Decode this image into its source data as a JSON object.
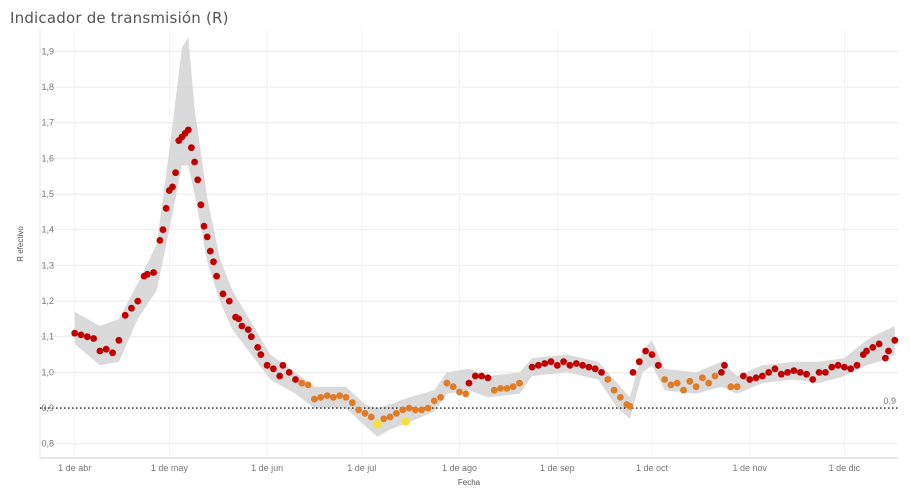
{
  "chart_data": {
    "type": "scatter",
    "title": "Indicador de transmisión (R)",
    "xlabel": "Fecha",
    "ylabel": "R efectivo",
    "x_range": [
      "2020-03-21",
      "2020-12-18"
    ],
    "ylim": [
      0.76,
      1.96
    ],
    "yticks": [
      0.8,
      0.9,
      1.0,
      1.1,
      1.2,
      1.3,
      1.4,
      1.5,
      1.6,
      1.7,
      1.8,
      1.9
    ],
    "ytick_labels": [
      "0,8",
      "0,9",
      "1,0",
      "1,1",
      "1,2",
      "1,3",
      "1,4",
      "1,5",
      "1,6",
      "1,7",
      "1,8",
      "1,9"
    ],
    "xticks": [
      {
        "date": "2020-04-01",
        "label": "1 de abr"
      },
      {
        "date": "2020-05-01",
        "label": "1 de may"
      },
      {
        "date": "2020-06-01",
        "label": "1 de jun"
      },
      {
        "date": "2020-07-01",
        "label": "1 de jul"
      },
      {
        "date": "2020-08-01",
        "label": "1 de ago"
      },
      {
        "date": "2020-09-01",
        "label": "1 de sep"
      },
      {
        "date": "2020-10-01",
        "label": "1 de oct"
      },
      {
        "date": "2020-11-01",
        "label": "1 de nov"
      },
      {
        "date": "2020-12-01",
        "label": "1 de dic"
      }
    ],
    "reference_line": {
      "y": 0.9,
      "label": "0,9",
      "style": "dotted"
    },
    "grid": "horizontal",
    "colors": {
      "high": "#c00000",
      "mid": "#e07b28",
      "low": "#f5e23d",
      "band": "#d3d3d3"
    },
    "series": [
      {
        "values": [
          [
            "2020-04-01",
            1.11
          ],
          [
            "2020-04-03",
            1.105
          ],
          [
            "2020-04-05",
            1.1
          ],
          [
            "2020-04-07",
            1.095
          ],
          [
            "2020-04-09",
            1.06
          ],
          [
            "2020-04-11",
            1.065
          ],
          [
            "2020-04-13",
            1.055
          ],
          [
            "2020-04-15",
            1.09
          ],
          [
            "2020-04-17",
            1.16
          ],
          [
            "2020-04-19",
            1.18
          ],
          [
            "2020-04-21",
            1.2
          ],
          [
            "2020-04-23",
            1.27
          ],
          [
            "2020-04-24",
            1.275
          ],
          [
            "2020-04-26",
            1.28
          ],
          [
            "2020-04-28",
            1.37
          ],
          [
            "2020-04-29",
            1.4
          ],
          [
            "2020-04-30",
            1.46
          ],
          [
            "2020-05-01",
            1.51
          ],
          [
            "2020-05-02",
            1.52
          ],
          [
            "2020-05-03",
            1.56
          ],
          [
            "2020-05-04",
            1.65
          ],
          [
            "2020-05-05",
            1.66
          ],
          [
            "2020-05-06",
            1.67
          ],
          [
            "2020-05-07",
            1.68
          ],
          [
            "2020-05-08",
            1.63
          ],
          [
            "2020-05-09",
            1.59
          ],
          [
            "2020-05-10",
            1.54
          ],
          [
            "2020-05-11",
            1.47
          ],
          [
            "2020-05-12",
            1.41
          ],
          [
            "2020-05-13",
            1.38
          ],
          [
            "2020-05-14",
            1.34
          ],
          [
            "2020-05-15",
            1.31
          ],
          [
            "2020-05-16",
            1.27
          ],
          [
            "2020-05-18",
            1.22
          ],
          [
            "2020-05-20",
            1.2
          ],
          [
            "2020-05-22",
            1.155
          ],
          [
            "2020-05-23",
            1.15
          ],
          [
            "2020-05-24",
            1.13
          ],
          [
            "2020-05-26",
            1.12
          ],
          [
            "2020-05-27",
            1.1
          ],
          [
            "2020-05-29",
            1.07
          ],
          [
            "2020-05-30",
            1.05
          ],
          [
            "2020-06-01",
            1.02
          ],
          [
            "2020-06-03",
            1.01
          ],
          [
            "2020-06-05",
            0.99
          ],
          [
            "2020-06-06",
            1.02
          ],
          [
            "2020-06-08",
            1.0
          ],
          [
            "2020-06-10",
            0.98
          ],
          [
            "2020-08-04",
            0.97
          ],
          [
            "2020-08-06",
            0.99
          ],
          [
            "2020-08-08",
            0.99
          ],
          [
            "2020-08-10",
            0.985
          ],
          [
            "2020-08-24",
            1.015
          ],
          [
            "2020-08-26",
            1.02
          ],
          [
            "2020-08-28",
            1.025
          ],
          [
            "2020-08-30",
            1.03
          ],
          [
            "2020-09-01",
            1.02
          ],
          [
            "2020-09-03",
            1.03
          ],
          [
            "2020-09-05",
            1.02
          ],
          [
            "2020-09-07",
            1.025
          ],
          [
            "2020-09-09",
            1.02
          ],
          [
            "2020-09-11",
            1.015
          ],
          [
            "2020-09-13",
            1.01
          ],
          [
            "2020-09-15",
            1.0
          ],
          [
            "2020-09-25",
            1.0
          ],
          [
            "2020-09-27",
            1.03
          ],
          [
            "2020-09-29",
            1.06
          ],
          [
            "2020-10-01",
            1.05
          ],
          [
            "2020-10-03",
            1.02
          ],
          [
            "2020-10-23",
            1.0
          ],
          [
            "2020-10-24",
            1.02
          ],
          [
            "2020-10-30",
            0.99
          ],
          [
            "2020-11-01",
            0.98
          ],
          [
            "2020-11-03",
            0.985
          ],
          [
            "2020-11-05",
            0.99
          ],
          [
            "2020-11-07",
            1.0
          ],
          [
            "2020-11-09",
            1.01
          ],
          [
            "2020-11-11",
            0.995
          ],
          [
            "2020-11-13",
            1.0
          ],
          [
            "2020-11-15",
            1.005
          ],
          [
            "2020-11-17",
            1.0
          ],
          [
            "2020-11-19",
            0.995
          ],
          [
            "2020-11-21",
            0.98
          ],
          [
            "2020-11-23",
            1.0
          ],
          [
            "2020-11-25",
            1.0
          ],
          [
            "2020-11-27",
            1.015
          ],
          [
            "2020-11-29",
            1.02
          ],
          [
            "2020-12-01",
            1.015
          ],
          [
            "2020-12-03",
            1.01
          ],
          [
            "2020-12-05",
            1.02
          ],
          [
            "2020-12-07",
            1.05
          ],
          [
            "2020-12-08",
            1.06
          ],
          [
            "2020-12-10",
            1.07
          ],
          [
            "2020-12-12",
            1.08
          ],
          [
            "2020-12-14",
            1.04
          ],
          [
            "2020-12-15",
            1.06
          ],
          [
            "2020-12-17",
            1.09
          ]
        ],
        "category": "high"
      },
      {
        "values": [
          [
            "2020-06-12",
            0.97
          ],
          [
            "2020-06-14",
            0.965
          ],
          [
            "2020-06-16",
            0.925
          ],
          [
            "2020-06-18",
            0.93
          ],
          [
            "2020-06-20",
            0.935
          ],
          [
            "2020-06-22",
            0.93
          ],
          [
            "2020-06-24",
            0.935
          ],
          [
            "2020-06-26",
            0.93
          ],
          [
            "2020-06-28",
            0.915
          ],
          [
            "2020-06-30",
            0.895
          ],
          [
            "2020-07-02",
            0.885
          ],
          [
            "2020-07-04",
            0.875
          ],
          [
            "2020-07-08",
            0.87
          ],
          [
            "2020-07-10",
            0.875
          ],
          [
            "2020-07-12",
            0.885
          ],
          [
            "2020-07-14",
            0.895
          ],
          [
            "2020-07-16",
            0.9
          ],
          [
            "2020-07-18",
            0.895
          ],
          [
            "2020-07-20",
            0.895
          ],
          [
            "2020-07-22",
            0.9
          ],
          [
            "2020-07-24",
            0.92
          ],
          [
            "2020-07-26",
            0.93
          ],
          [
            "2020-07-28",
            0.97
          ],
          [
            "2020-07-30",
            0.96
          ],
          [
            "2020-08-01",
            0.945
          ],
          [
            "2020-08-03",
            0.94
          ],
          [
            "2020-08-12",
            0.95
          ],
          [
            "2020-08-14",
            0.955
          ],
          [
            "2020-08-16",
            0.955
          ],
          [
            "2020-08-18",
            0.96
          ],
          [
            "2020-08-20",
            0.97
          ],
          [
            "2020-09-17",
            0.98
          ],
          [
            "2020-09-19",
            0.95
          ],
          [
            "2020-09-21",
            0.93
          ],
          [
            "2020-09-23",
            0.91
          ],
          [
            "2020-09-24",
            0.905
          ],
          [
            "2020-10-05",
            0.98
          ],
          [
            "2020-10-07",
            0.965
          ],
          [
            "2020-10-09",
            0.97
          ],
          [
            "2020-10-11",
            0.95
          ],
          [
            "2020-10-13",
            0.975
          ],
          [
            "2020-10-15",
            0.96
          ],
          [
            "2020-10-17",
            0.985
          ],
          [
            "2020-10-19",
            0.97
          ],
          [
            "2020-10-21",
            0.99
          ],
          [
            "2020-10-26",
            0.96
          ],
          [
            "2020-10-28",
            0.96
          ]
        ],
        "category": "mid"
      },
      {
        "values": [
          [
            "2020-07-06",
            0.855
          ],
          [
            "2020-07-15",
            0.862
          ]
        ],
        "category": "low"
      }
    ],
    "interval_band": [
      [
        "2020-04-01",
        1.08,
        1.17
      ],
      [
        "2020-04-09",
        1.02,
        1.13
      ],
      [
        "2020-04-15",
        1.03,
        1.15
      ],
      [
        "2020-04-21",
        1.15,
        1.25
      ],
      [
        "2020-04-27",
        1.23,
        1.36
      ],
      [
        "2020-05-01",
        1.4,
        1.62
      ],
      [
        "2020-05-05",
        1.58,
        1.91
      ],
      [
        "2020-05-07",
        1.58,
        1.94
      ],
      [
        "2020-05-09",
        1.5,
        1.74
      ],
      [
        "2020-05-13",
        1.31,
        1.49
      ],
      [
        "2020-05-17",
        1.2,
        1.32
      ],
      [
        "2020-05-21",
        1.12,
        1.23
      ],
      [
        "2020-05-27",
        1.05,
        1.14
      ],
      [
        "2020-06-02",
        0.98,
        1.05
      ],
      [
        "2020-06-10",
        0.94,
        1.0
      ],
      [
        "2020-06-16",
        0.9,
        0.96
      ],
      [
        "2020-06-26",
        0.9,
        0.96
      ],
      [
        "2020-07-02",
        0.85,
        0.91
      ],
      [
        "2020-07-06",
        0.82,
        0.9
      ],
      [
        "2020-07-10",
        0.84,
        0.91
      ],
      [
        "2020-07-16",
        0.86,
        0.93
      ],
      [
        "2020-07-24",
        0.89,
        0.95
      ],
      [
        "2020-07-28",
        0.94,
        1.0
      ],
      [
        "2020-08-04",
        0.95,
        1.01
      ],
      [
        "2020-08-10",
        0.93,
        0.99
      ],
      [
        "2020-08-20",
        0.94,
        1.0
      ],
      [
        "2020-08-24",
        0.99,
        1.04
      ],
      [
        "2020-09-04",
        1.0,
        1.05
      ],
      [
        "2020-09-14",
        0.98,
        1.03
      ],
      [
        "2020-09-20",
        0.9,
        0.97
      ],
      [
        "2020-09-24",
        0.87,
        0.93
      ],
      [
        "2020-09-28",
        1.0,
        1.06
      ],
      [
        "2020-10-01",
        1.02,
        1.09
      ],
      [
        "2020-10-05",
        0.95,
        1.01
      ],
      [
        "2020-10-15",
        0.94,
        1.0
      ],
      [
        "2020-10-23",
        0.96,
        1.03
      ],
      [
        "2020-10-28",
        0.94,
        0.99
      ],
      [
        "2020-11-05",
        0.97,
        1.02
      ],
      [
        "2020-11-15",
        0.98,
        1.03
      ],
      [
        "2020-11-23",
        0.97,
        1.03
      ],
      [
        "2020-12-01",
        0.99,
        1.04
      ],
      [
        "2020-12-08",
        1.02,
        1.09
      ],
      [
        "2020-12-12",
        1.03,
        1.11
      ],
      [
        "2020-12-17",
        1.05,
        1.13
      ]
    ]
  }
}
